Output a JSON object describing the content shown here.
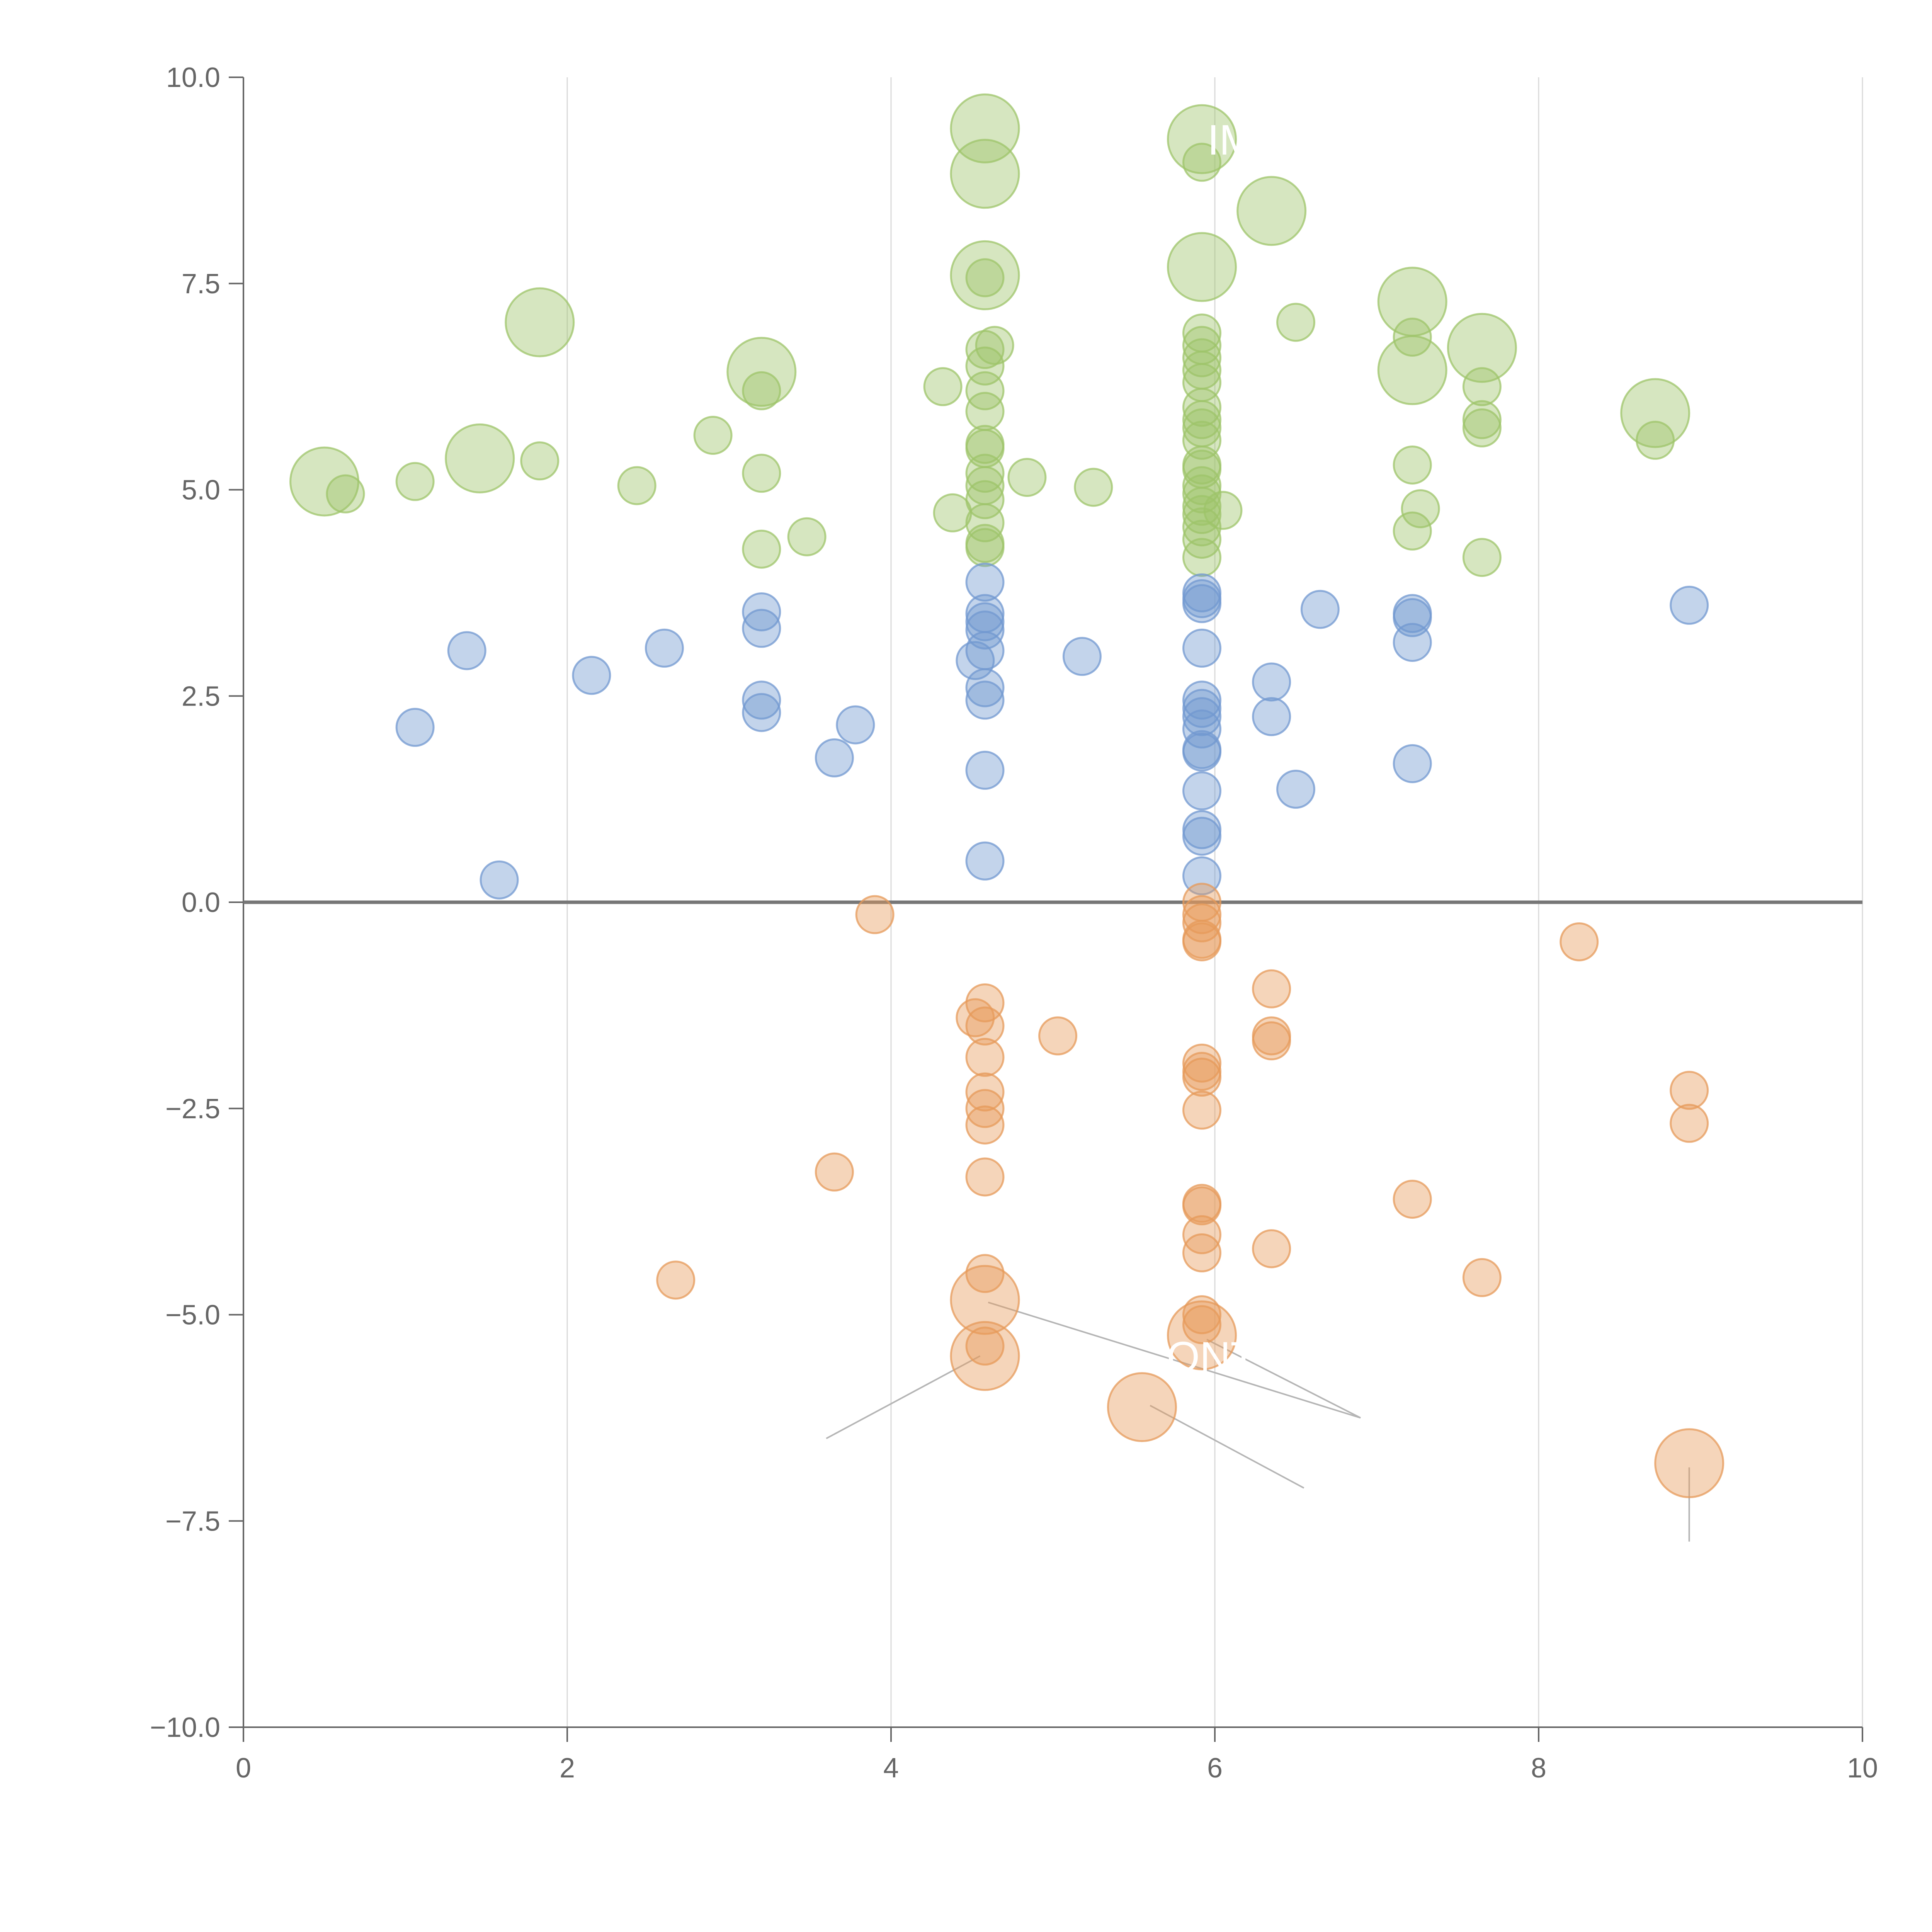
{
  "chart_data": {
    "type": "scatter",
    "title": "",
    "xlabel": "",
    "ylabel": "",
    "xlim": [
      0,
      10
    ],
    "ylim": [
      -10,
      10
    ],
    "grid": "vertical",
    "x_ticks": [
      "0",
      "2",
      "4",
      "6",
      "8",
      "10"
    ],
    "y_ticks": [
      "10.0",
      "7.5",
      "5.0",
      "2.5",
      "0.0",
      "−2.5",
      "−5.0",
      "−7.5",
      "−10.0"
    ],
    "colors": {
      "green": "#9ec46a",
      "blue": "#7198d0",
      "orange": "#e69a5a",
      "axis": "#666666"
    },
    "series": [
      {
        "name": "green",
        "color": "#9ec46a",
        "points": [
          {
            "x": 0.5,
            "y": 5.1,
            "s": 2
          },
          {
            "x": 0.63,
            "y": 4.95,
            "s": 1
          },
          {
            "x": 1.06,
            "y": 5.1,
            "s": 1
          },
          {
            "x": 1.46,
            "y": 5.38,
            "s": 2
          },
          {
            "x": 1.83,
            "y": 5.35,
            "s": 1
          },
          {
            "x": 1.83,
            "y": 7.03,
            "s": 2
          },
          {
            "x": 2.43,
            "y": 5.05,
            "s": 1
          },
          {
            "x": 2.9,
            "y": 5.66,
            "s": 1
          },
          {
            "x": 3.2,
            "y": 6.43,
            "s": 2
          },
          {
            "x": 3.2,
            "y": 6.2,
            "s": 1
          },
          {
            "x": 3.2,
            "y": 5.2,
            "s": 1
          },
          {
            "x": 3.2,
            "y": 4.28,
            "s": 1
          },
          {
            "x": 3.48,
            "y": 4.43,
            "s": 1
          },
          {
            "x": 4.32,
            "y": 6.25,
            "s": 1
          },
          {
            "x": 4.38,
            "y": 4.72,
            "s": 1
          },
          {
            "x": 4.58,
            "y": 9.38,
            "s": 2
          },
          {
            "x": 4.58,
            "y": 8.83,
            "s": 2
          },
          {
            "x": 4.58,
            "y": 7.6,
            "s": 2
          },
          {
            "x": 4.58,
            "y": 7.57,
            "s": 1
          },
          {
            "x": 4.58,
            "y": 6.7,
            "s": 1
          },
          {
            "x": 4.58,
            "y": 6.5,
            "s": 1
          },
          {
            "x": 4.58,
            "y": 6.2,
            "s": 1
          },
          {
            "x": 4.58,
            "y": 5.95,
            "s": 1
          },
          {
            "x": 4.58,
            "y": 5.55,
            "s": 1
          },
          {
            "x": 4.58,
            "y": 5.5,
            "s": 1
          },
          {
            "x": 4.58,
            "y": 5.2,
            "s": 1
          },
          {
            "x": 4.58,
            "y": 5.05,
            "s": 1
          },
          {
            "x": 4.58,
            "y": 4.88,
            "s": 1
          },
          {
            "x": 4.58,
            "y": 4.6,
            "s": 1
          },
          {
            "x": 4.58,
            "y": 4.35,
            "s": 1
          },
          {
            "x": 4.58,
            "y": 4.3,
            "s": 1
          },
          {
            "x": 4.64,
            "y": 6.75,
            "s": 1
          },
          {
            "x": 4.84,
            "y": 5.15,
            "s": 1
          },
          {
            "x": 5.25,
            "y": 5.03,
            "s": 1
          },
          {
            "x": 5.92,
            "y": 9.25,
            "s": 2
          },
          {
            "x": 5.92,
            "y": 8.97,
            "s": 1
          },
          {
            "x": 5.92,
            "y": 7.7,
            "s": 2
          },
          {
            "x": 5.92,
            "y": 6.9,
            "s": 1
          },
          {
            "x": 5.92,
            "y": 6.75,
            "s": 1
          },
          {
            "x": 5.92,
            "y": 6.6,
            "s": 1
          },
          {
            "x": 5.92,
            "y": 6.45,
            "s": 1
          },
          {
            "x": 5.92,
            "y": 6.3,
            "s": 1
          },
          {
            "x": 5.92,
            "y": 6.0,
            "s": 1
          },
          {
            "x": 5.92,
            "y": 5.85,
            "s": 1
          },
          {
            "x": 5.92,
            "y": 5.75,
            "s": 1
          },
          {
            "x": 5.92,
            "y": 5.6,
            "s": 1
          },
          {
            "x": 5.92,
            "y": 5.3,
            "s": 1
          },
          {
            "x": 5.92,
            "y": 5.25,
            "s": 1
          },
          {
            "x": 5.92,
            "y": 5.05,
            "s": 1
          },
          {
            "x": 5.92,
            "y": 4.95,
            "s": 1
          },
          {
            "x": 5.92,
            "y": 4.8,
            "s": 1
          },
          {
            "x": 5.92,
            "y": 4.7,
            "s": 1
          },
          {
            "x": 5.92,
            "y": 4.55,
            "s": 1
          },
          {
            "x": 5.92,
            "y": 4.4,
            "s": 1
          },
          {
            "x": 5.92,
            "y": 4.18,
            "s": 1
          },
          {
            "x": 6.05,
            "y": 4.75,
            "s": 1
          },
          {
            "x": 6.35,
            "y": 8.38,
            "s": 2
          },
          {
            "x": 6.5,
            "y": 7.03,
            "s": 1
          },
          {
            "x": 7.22,
            "y": 7.28,
            "s": 2
          },
          {
            "x": 7.22,
            "y": 6.85,
            "s": 1
          },
          {
            "x": 7.22,
            "y": 6.45,
            "s": 2
          },
          {
            "x": 7.22,
            "y": 5.3,
            "s": 1
          },
          {
            "x": 7.22,
            "y": 4.5,
            "s": 1
          },
          {
            "x": 7.27,
            "y": 4.77,
            "s": 1
          },
          {
            "x": 7.65,
            "y": 6.72,
            "s": 2
          },
          {
            "x": 7.65,
            "y": 6.25,
            "s": 1
          },
          {
            "x": 7.65,
            "y": 5.85,
            "s": 1
          },
          {
            "x": 7.65,
            "y": 5.75,
            "s": 1
          },
          {
            "x": 7.65,
            "y": 4.18,
            "s": 1
          },
          {
            "x": 8.72,
            "y": 5.93,
            "s": 2
          },
          {
            "x": 8.72,
            "y": 5.6,
            "s": 1
          }
        ]
      },
      {
        "name": "blue",
        "color": "#7198d0",
        "points": [
          {
            "x": 1.06,
            "y": 2.12,
            "s": 1
          },
          {
            "x": 1.38,
            "y": 3.05,
            "s": 1
          },
          {
            "x": 1.58,
            "y": 0.27,
            "s": 1
          },
          {
            "x": 2.15,
            "y": 2.75,
            "s": 1
          },
          {
            "x": 2.6,
            "y": 3.08,
            "s": 1
          },
          {
            "x": 3.2,
            "y": 3.52,
            "s": 1
          },
          {
            "x": 3.2,
            "y": 3.32,
            "s": 1
          },
          {
            "x": 3.2,
            "y": 2.45,
            "s": 1
          },
          {
            "x": 3.2,
            "y": 2.3,
            "s": 1
          },
          {
            "x": 3.65,
            "y": 1.75,
            "s": 1
          },
          {
            "x": 3.78,
            "y": 2.15,
            "s": 1
          },
          {
            "x": 4.52,
            "y": 2.93,
            "s": 1
          },
          {
            "x": 4.58,
            "y": 3.88,
            "s": 1
          },
          {
            "x": 4.58,
            "y": 3.5,
            "s": 1
          },
          {
            "x": 4.58,
            "y": 3.4,
            "s": 1
          },
          {
            "x": 4.58,
            "y": 3.3,
            "s": 1
          },
          {
            "x": 4.58,
            "y": 3.05,
            "s": 1
          },
          {
            "x": 4.58,
            "y": 2.6,
            "s": 1
          },
          {
            "x": 4.58,
            "y": 2.45,
            "s": 1
          },
          {
            "x": 4.58,
            "y": 1.6,
            "s": 1
          },
          {
            "x": 4.58,
            "y": 0.5,
            "s": 1
          },
          {
            "x": 5.18,
            "y": 2.98,
            "s": 1
          },
          {
            "x": 5.92,
            "y": 3.75,
            "s": 1
          },
          {
            "x": 5.92,
            "y": 3.68,
            "s": 1
          },
          {
            "x": 5.92,
            "y": 3.62,
            "s": 1
          },
          {
            "x": 5.92,
            "y": 3.08,
            "s": 1
          },
          {
            "x": 5.92,
            "y": 2.45,
            "s": 1
          },
          {
            "x": 5.92,
            "y": 2.35,
            "s": 1
          },
          {
            "x": 5.92,
            "y": 2.25,
            "s": 1
          },
          {
            "x": 5.92,
            "y": 2.1,
            "s": 1
          },
          {
            "x": 5.92,
            "y": 1.85,
            "s": 1
          },
          {
            "x": 5.92,
            "y": 1.82,
            "s": 1
          },
          {
            "x": 5.92,
            "y": 1.35,
            "s": 1
          },
          {
            "x": 5.92,
            "y": 0.88,
            "s": 1
          },
          {
            "x": 5.92,
            "y": 0.8,
            "s": 1
          },
          {
            "x": 5.92,
            "y": 0.32,
            "s": 1
          },
          {
            "x": 6.35,
            "y": 2.67,
            "s": 1
          },
          {
            "x": 6.35,
            "y": 2.25,
            "s": 1
          },
          {
            "x": 6.5,
            "y": 1.37,
            "s": 1
          },
          {
            "x": 6.65,
            "y": 3.55,
            "s": 1
          },
          {
            "x": 7.22,
            "y": 3.5,
            "s": 1
          },
          {
            "x": 7.22,
            "y": 3.45,
            "s": 1
          },
          {
            "x": 7.22,
            "y": 3.15,
            "s": 1
          },
          {
            "x": 7.22,
            "y": 1.68,
            "s": 1
          },
          {
            "x": 8.93,
            "y": 3.6,
            "s": 1
          }
        ]
      },
      {
        "name": "orange",
        "color": "#e69a5a",
        "points": [
          {
            "x": 2.67,
            "y": -4.58,
            "s": 1
          },
          {
            "x": 3.65,
            "y": -3.27,
            "s": 1
          },
          {
            "x": 3.9,
            "y": -0.15,
            "s": 1
          },
          {
            "x": 4.52,
            "y": -1.4,
            "s": 1
          },
          {
            "x": 4.58,
            "y": -1.22,
            "s": 1
          },
          {
            "x": 4.58,
            "y": -1.5,
            "s": 1
          },
          {
            "x": 4.58,
            "y": -1.88,
            "s": 1
          },
          {
            "x": 4.58,
            "y": -2.3,
            "s": 1
          },
          {
            "x": 4.58,
            "y": -2.5,
            "s": 1
          },
          {
            "x": 4.58,
            "y": -2.7,
            "s": 1
          },
          {
            "x": 4.58,
            "y": -3.33,
            "s": 1
          },
          {
            "x": 4.58,
            "y": -4.5,
            "s": 1
          },
          {
            "x": 4.58,
            "y": -4.82,
            "s": 2
          },
          {
            "x": 4.58,
            "y": -5.38,
            "s": 1
          },
          {
            "x": 4.58,
            "y": -5.5,
            "s": 2
          },
          {
            "x": 5.03,
            "y": -1.62,
            "s": 1
          },
          {
            "x": 5.55,
            "y": -6.12,
            "s": 2
          },
          {
            "x": 5.92,
            "y": 0.0,
            "s": 1
          },
          {
            "x": 5.92,
            "y": -0.15,
            "s": 1
          },
          {
            "x": 5.92,
            "y": -0.25,
            "s": 1
          },
          {
            "x": 5.92,
            "y": -0.45,
            "s": 1
          },
          {
            "x": 5.92,
            "y": -0.48,
            "s": 1
          },
          {
            "x": 5.92,
            "y": -1.95,
            "s": 1
          },
          {
            "x": 5.92,
            "y": -2.05,
            "s": 1
          },
          {
            "x": 5.92,
            "y": -2.12,
            "s": 1
          },
          {
            "x": 5.92,
            "y": -2.52,
            "s": 1
          },
          {
            "x": 5.92,
            "y": -3.65,
            "s": 1
          },
          {
            "x": 5.92,
            "y": -3.68,
            "s": 1
          },
          {
            "x": 5.92,
            "y": -4.03,
            "s": 1
          },
          {
            "x": 5.92,
            "y": -4.25,
            "s": 1
          },
          {
            "x": 5.92,
            "y": -5.0,
            "s": 1
          },
          {
            "x": 5.92,
            "y": -5.12,
            "s": 1
          },
          {
            "x": 5.92,
            "y": -5.25,
            "s": 2
          },
          {
            "x": 6.35,
            "y": -1.05,
            "s": 1
          },
          {
            "x": 6.35,
            "y": -1.62,
            "s": 1
          },
          {
            "x": 6.35,
            "y": -1.68,
            "s": 1
          },
          {
            "x": 6.35,
            "y": -4.2,
            "s": 1
          },
          {
            "x": 7.22,
            "y": -3.6,
            "s": 1
          },
          {
            "x": 7.65,
            "y": -4.55,
            "s": 1
          },
          {
            "x": 8.25,
            "y": -0.48,
            "s": 1
          },
          {
            "x": 8.93,
            "y": -2.28,
            "s": 1
          },
          {
            "x": 8.93,
            "y": -2.68,
            "s": 1
          },
          {
            "x": 8.93,
            "y": -6.8,
            "s": 2
          }
        ]
      }
    ],
    "annotations": [
      {
        "text": "IM",
        "x": 6.1,
        "y": 9.25
      },
      {
        "text": "ONT",
        "x": 5.98,
        "y": -5.5
      }
    ]
  }
}
